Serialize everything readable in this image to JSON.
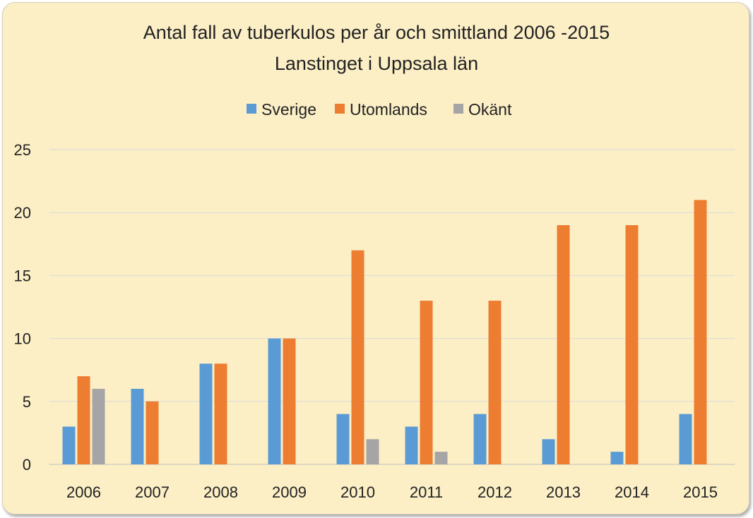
{
  "chart_data": {
    "type": "bar",
    "title": "Antal fall av tuberkulos per år och smittland 2006 -2015",
    "subtitle": "Lanstinget i Uppsala län",
    "categories": [
      "2006",
      "2007",
      "2008",
      "2009",
      "2010",
      "2011",
      "2012",
      "2013",
      "2014",
      "2015"
    ],
    "series": [
      {
        "name": "Sverige",
        "color": "#5b9bd5",
        "values": [
          3,
          6,
          8,
          10,
          4,
          3,
          4,
          2,
          1,
          4
        ]
      },
      {
        "name": "Utomlands",
        "color": "#ed7d31",
        "values": [
          7,
          5,
          8,
          10,
          17,
          13,
          13,
          19,
          19,
          21
        ]
      },
      {
        "name": "Okänt",
        "color": "#a5a5a5",
        "values": [
          6,
          0,
          0,
          0,
          2,
          1,
          0,
          0,
          0,
          0
        ]
      }
    ],
    "ylim": [
      0,
      25
    ],
    "yticks": [
      "0",
      "5",
      "10",
      "15",
      "20",
      "25"
    ],
    "grid": true,
    "legend_position": "top"
  }
}
